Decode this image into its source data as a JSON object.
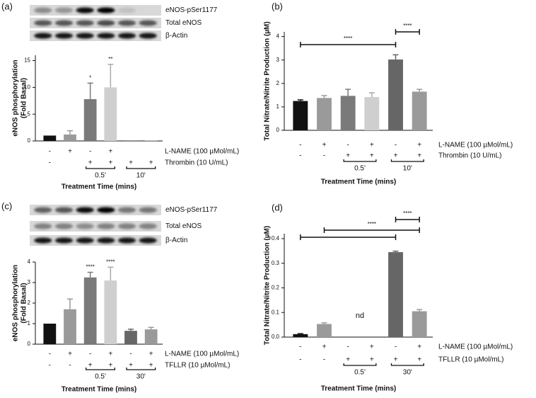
{
  "chart_data": [
    {
      "type": "bar",
      "panel": "(a)",
      "blot_labels": [
        "eNOS-pSer1177",
        "Total eNOS",
        "β-Actin"
      ],
      "ylabel": [
        "eNOS phosphorylation",
        "(Fold Basal)"
      ],
      "xlabel": "Treatment Time (mins)",
      "ylim": [
        0,
        16
      ],
      "yticks": [
        0,
        5,
        10,
        15
      ],
      "values": [
        1.0,
        1.2,
        7.8,
        10.0,
        0.1,
        0.1
      ],
      "errors": [
        0,
        0.7,
        3.0,
        4.3,
        0,
        0
      ],
      "colors": [
        "#111111",
        "#9a9a9a",
        "#7a7a7a",
        "#cfcfcf",
        "#777777",
        "#aaaaaa"
      ],
      "rows": [
        {
          "name": "L-NAME (100 µMol/mL)",
          "labels": [
            "-",
            "+",
            "-",
            "+",
            null,
            null
          ]
        },
        {
          "name": "Thrombin (10 U/mL)",
          "labels": [
            "-",
            null,
            "+",
            "+",
            "+",
            "+"
          ]
        }
      ],
      "groups": [
        {
          "label": "0.5'",
          "bars": [
            2,
            3
          ]
        },
        {
          "label": "10'",
          "bars": [
            4,
            5
          ]
        }
      ],
      "annotations": [
        {
          "text": "*",
          "bar": 2
        },
        {
          "text": "**",
          "bar": 3
        }
      ]
    },
    {
      "type": "bar",
      "panel": "(b)",
      "ylabel": [
        "Total Nitrate/Nitrite Production (µM)"
      ],
      "xlabel": "Treatment Time (mins)",
      "ylim": [
        0,
        4.2
      ],
      "yticks": [
        0,
        1,
        2,
        3,
        4
      ],
      "values": [
        1.25,
        1.38,
        1.47,
        1.42,
        3.02,
        1.65
      ],
      "errors": [
        0.05,
        0.1,
        0.28,
        0.18,
        0.2,
        0.1
      ],
      "colors": [
        "#111111",
        "#9a9a9a",
        "#7a7a7a",
        "#cfcfcf",
        "#666666",
        "#9a9a9a"
      ],
      "rows": [
        {
          "name": "L-NAME (100 µMol/mL)",
          "labels": [
            "-",
            "+",
            "-",
            "+",
            "-",
            "+"
          ]
        },
        {
          "name": "Thrombin (10 U/mL)",
          "labels": [
            "-",
            "-",
            "+",
            "+",
            "+",
            "+"
          ]
        }
      ],
      "groups": [
        {
          "label": "0.5'",
          "bars": [
            2,
            3
          ]
        },
        {
          "label": "10'",
          "bars": [
            4,
            5
          ]
        }
      ],
      "brackets": [
        {
          "text": "****",
          "from": 0,
          "to": 4
        },
        {
          "text": "****",
          "from": 4,
          "to": 5
        }
      ]
    },
    {
      "type": "bar",
      "panel": "(c)",
      "blot_labels": [
        "eNOS-pSer1177",
        "Total eNOS",
        "β-Actin"
      ],
      "ylabel": [
        "eNOS phosphorylation",
        "(Fold Basal)"
      ],
      "xlabel": "Treatment Time (mins)",
      "ylim": [
        0,
        4
      ],
      "yticks": [
        0,
        1,
        2,
        3,
        4
      ],
      "values": [
        1.0,
        1.7,
        3.25,
        3.1,
        0.65,
        0.72
      ],
      "errors": [
        0,
        0.5,
        0.25,
        0.65,
        0.08,
        0.1
      ],
      "colors": [
        "#111111",
        "#9a9a9a",
        "#7a7a7a",
        "#cfcfcf",
        "#666666",
        "#9a9a9a"
      ],
      "rows": [
        {
          "name": "L-NAME (100 µMol/mL)",
          "labels": [
            "-",
            "+",
            "-",
            "+",
            "-",
            "+"
          ]
        },
        {
          "name": "TFLLR (10 µMol/mL)",
          "labels": [
            "-",
            "-",
            "+",
            "+",
            "+",
            "+"
          ]
        }
      ],
      "groups": [
        {
          "label": "0.5'",
          "bars": [
            2,
            3
          ]
        },
        {
          "label": "30'",
          "bars": [
            4,
            5
          ]
        }
      ],
      "annotations": [
        {
          "text": "****",
          "bar": 2
        },
        {
          "text": "****",
          "bar": 3
        }
      ]
    },
    {
      "type": "bar",
      "panel": "(d)",
      "ylabel": [
        "Total Nitrate/Nitrite Production (µM)"
      ],
      "xlabel": "Treatment Time (mins)",
      "ylim": [
        0,
        0.42
      ],
      "yticks": [
        {
          "value": 0,
          "label": "0.0"
        },
        0.1,
        0.2,
        0.3,
        0.4
      ],
      "values": [
        0.012,
        0.053,
        null,
        null,
        0.345,
        0.105
      ],
      "errors": [
        0.002,
        0.005,
        null,
        null,
        0.004,
        0.007
      ],
      "colors": [
        "#111111",
        "#9a9a9a",
        "#7a7a7a",
        "#cfcfcf",
        "#666666",
        "#9a9a9a"
      ],
      "rows": [
        {
          "name": "L-NAME (100 µMol/mL)",
          "labels": [
            "-",
            "+",
            "-",
            "+",
            "-",
            "+"
          ]
        },
        {
          "name": "TFLLR (10 µMol/mL)",
          "labels": [
            "-",
            "-",
            "+",
            "+",
            "+",
            "+"
          ]
        }
      ],
      "groups": [
        {
          "label": "0.5'",
          "bars": [
            2,
            3
          ]
        },
        {
          "label": "30'",
          "bars": [
            4,
            5
          ]
        }
      ],
      "note": "nd",
      "brackets": [
        {
          "from": 0,
          "to": 4
        },
        {
          "text": "****",
          "from": 1,
          "to": 5
        },
        {
          "text": "****",
          "from": 4,
          "to": 5
        }
      ]
    }
  ]
}
